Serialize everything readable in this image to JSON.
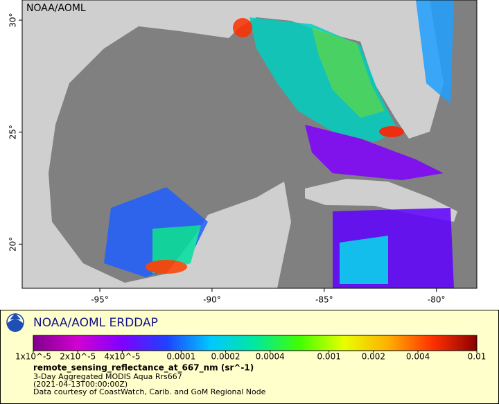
{
  "chart_data": {
    "type": "map",
    "map_label": "NOAA/AOML",
    "xlim": [
      -98.46,
      -78.2
    ],
    "ylim": [
      18.03,
      30.9
    ],
    "xticks": [
      {
        "value": -95,
        "label": "-95°"
      },
      {
        "value": -90,
        "label": "-90°"
      },
      {
        "value": -85,
        "label": "-85°"
      },
      {
        "value": -80,
        "label": "-80°"
      }
    ],
    "yticks": [
      {
        "value": 20,
        "label": "20°"
      },
      {
        "value": 25,
        "label": "25°"
      },
      {
        "value": 30,
        "label": "30°"
      }
    ],
    "legend": {
      "title": "NOAA/AOML ERDDAP",
      "variable": "remote_sensing_reflectance_at_667_nm (sr^-1)",
      "lines": [
        "3-Day Aggregated MODIS Aqua Rrs667",
        "(2021-04-13T00:00:00Z)",
        "Data courtesy of CoastWatch, Carib. and GoM Regional Node"
      ],
      "scale": "log",
      "lim": [
        1e-05,
        0.01
      ],
      "ticks": [
        {
          "value": 1e-05,
          "label": "1x10^-5"
        },
        {
          "value": 2e-05,
          "label": "2x10^-5"
        },
        {
          "value": 4e-05,
          "label": "4x10^-5"
        },
        0.0001,
        0.0002,
        0.0004,
        0.001,
        0.002,
        0.004,
        0.01
      ],
      "colors": [
        "#80008c",
        "#d200d2",
        "#8000ff",
        "#2040ff",
        "#00c8ff",
        "#00e8a0",
        "#40ff00",
        "#e8ff00",
        "#ffb000",
        "#ff3000",
        "#8c0000"
      ]
    }
  }
}
